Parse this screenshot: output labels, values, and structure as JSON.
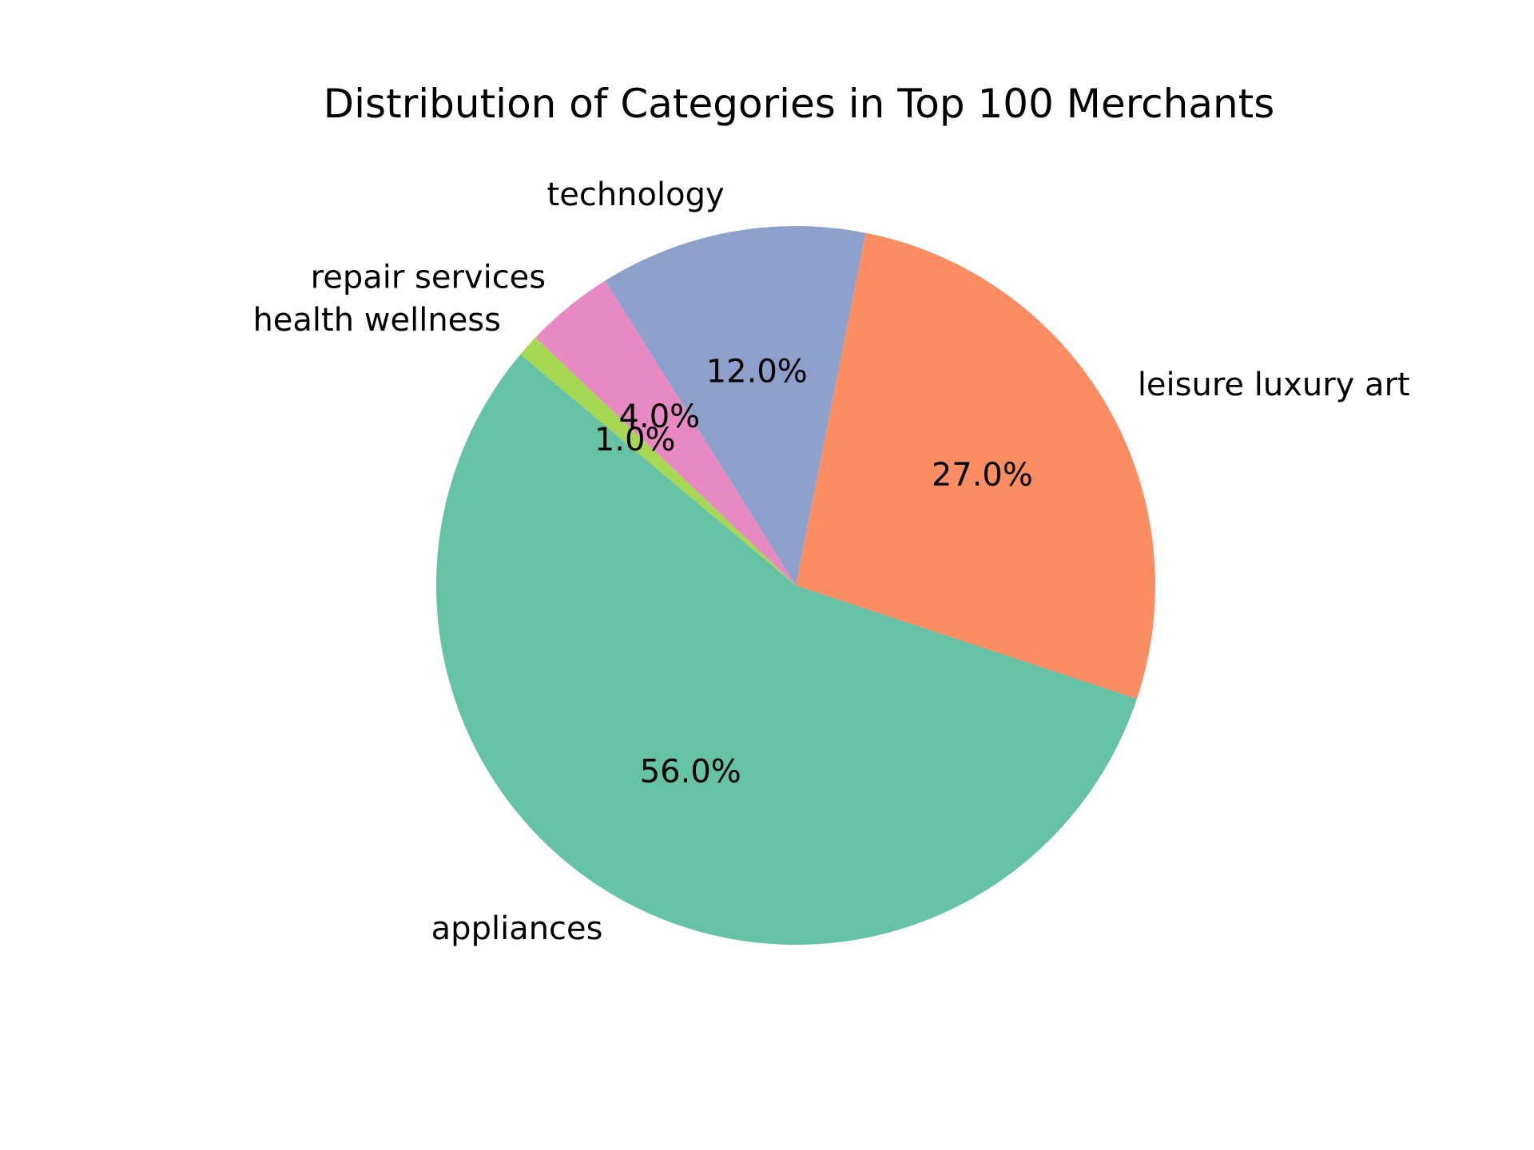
{
  "chart_data": {
    "type": "pie",
    "title": "Distribution of Categories in Top 100 Merchants",
    "slices": [
      {
        "label": "appliances",
        "value": 56.0,
        "pct_label": "56.0%",
        "color": "#66c2a5"
      },
      {
        "label": "leisure luxury art",
        "value": 27.0,
        "pct_label": "27.0%",
        "color": "#fc8d62"
      },
      {
        "label": "technology",
        "value": 12.0,
        "pct_label": "12.0%",
        "color": "#8da0cb"
      },
      {
        "label": "repair services",
        "value": 4.0,
        "pct_label": "4.0%",
        "color": "#e78ac3"
      },
      {
        "label": "health wellness",
        "value": 1.0,
        "pct_label": "1.0%",
        "color": "#a6d854"
      }
    ],
    "start_angle_deg": 140,
    "direction": "counterclockwise",
    "legend": "none"
  }
}
